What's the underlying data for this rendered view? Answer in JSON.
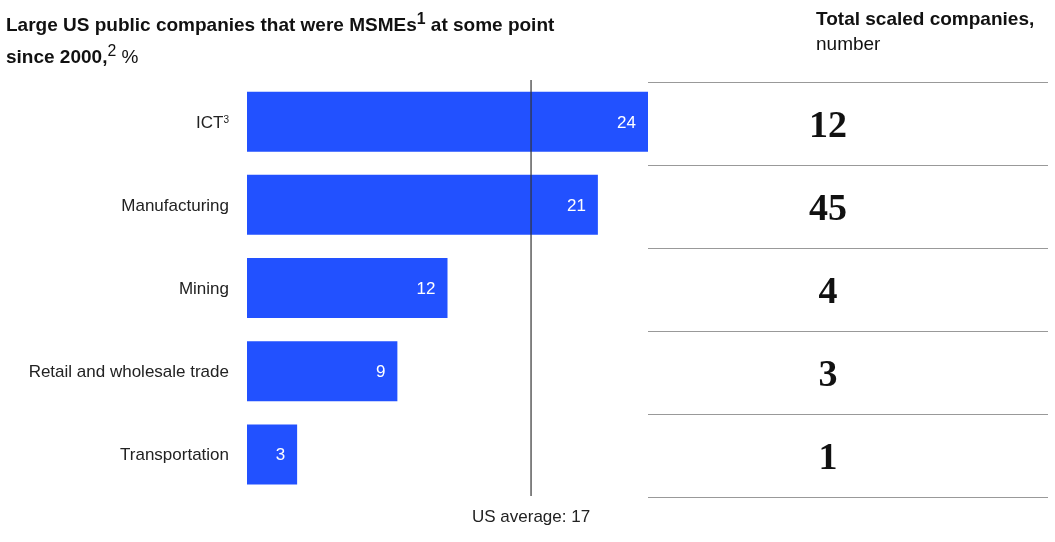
{
  "chart_data": [
    {
      "type": "bar",
      "orientation": "horizontal",
      "title": "Large US public companies that were MSMEs$^{1}$ at some point since 2000,$^{2}$ %",
      "categories": [
        "ICT$^{3}$",
        "Manufacturing",
        "Mining",
        "Retail and wholesale trade",
        "Transportation"
      ],
      "values": [
        24,
        21,
        12,
        9,
        3
      ],
      "color": "#2251ff",
      "xlim": [
        0,
        24
      ],
      "data_labels": true,
      "tick_labels": "y",
      "ref_lines": [
        {
          "axis": "x",
          "value": 17,
          "label": "US average: 17",
          "color": "#333333"
        }
      ]
    },
    {
      "type": "other",
      "title": "Total scaled companies, number",
      "categories": [
        null,
        null,
        null,
        null,
        null
      ],
      "values": [
        12,
        45,
        4,
        3,
        1
      ],
      "data_labels": true
    }
  ]
}
